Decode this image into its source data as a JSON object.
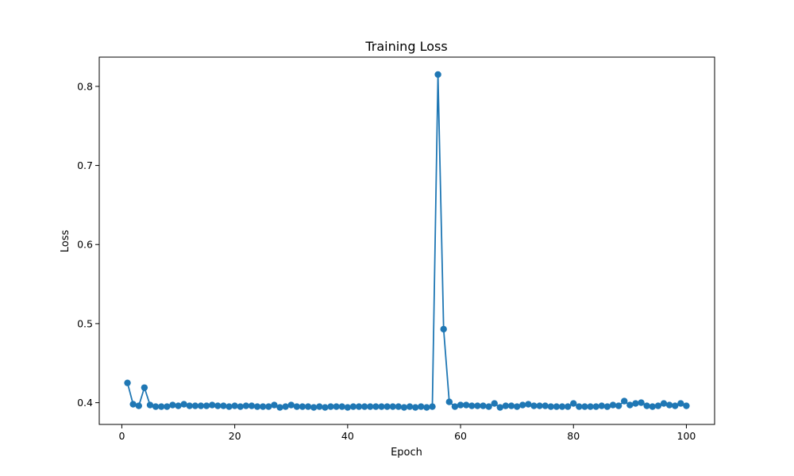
{
  "chart_data": {
    "type": "line",
    "title": "Training Loss",
    "xlabel": "Epoch",
    "ylabel": "Loss",
    "xlim": [
      -4,
      105
    ],
    "ylim": [
      0.3725,
      0.837
    ],
    "xticks": [
      0,
      20,
      40,
      60,
      80,
      100
    ],
    "yticks": [
      0.4,
      0.5,
      0.6,
      0.7,
      0.8
    ],
    "grid": false,
    "legend": "none",
    "color": "#1f77b4",
    "marker": "circle",
    "series": [
      {
        "x": [
          1,
          2,
          3,
          4,
          5,
          6,
          7,
          8,
          9,
          10,
          11,
          12,
          13,
          14,
          15,
          16,
          17,
          18,
          19,
          20,
          21,
          22,
          23,
          24,
          25,
          26,
          27,
          28,
          29,
          30,
          31,
          32,
          33,
          34,
          35,
          36,
          37,
          38,
          39,
          40,
          41,
          42,
          43,
          44,
          45,
          46,
          47,
          48,
          49,
          50,
          51,
          52,
          53,
          54,
          55,
          56,
          57,
          58,
          59,
          60,
          61,
          62,
          63,
          64,
          65,
          66,
          67,
          68,
          69,
          70,
          71,
          72,
          73,
          74,
          75,
          76,
          77,
          78,
          79,
          80,
          81,
          82,
          83,
          84,
          85,
          86,
          87,
          88,
          89,
          90,
          91,
          92,
          93,
          94,
          95,
          96,
          97,
          98,
          99,
          100
        ],
        "values": [
          0.425,
          0.398,
          0.396,
          0.419,
          0.397,
          0.395,
          0.395,
          0.395,
          0.397,
          0.396,
          0.398,
          0.396,
          0.396,
          0.396,
          0.396,
          0.397,
          0.396,
          0.396,
          0.395,
          0.396,
          0.395,
          0.396,
          0.396,
          0.395,
          0.395,
          0.395,
          0.397,
          0.394,
          0.395,
          0.397,
          0.395,
          0.395,
          0.395,
          0.394,
          0.395,
          0.394,
          0.395,
          0.395,
          0.395,
          0.394,
          0.395,
          0.395,
          0.395,
          0.395,
          0.395,
          0.395,
          0.395,
          0.395,
          0.395,
          0.394,
          0.395,
          0.394,
          0.395,
          0.394,
          0.395,
          0.815,
          0.493,
          0.401,
          0.395,
          0.397,
          0.397,
          0.396,
          0.396,
          0.396,
          0.395,
          0.399,
          0.394,
          0.396,
          0.396,
          0.395,
          0.397,
          0.398,
          0.396,
          0.396,
          0.396,
          0.395,
          0.395,
          0.395,
          0.395,
          0.399,
          0.395,
          0.395,
          0.395,
          0.395,
          0.396,
          0.395,
          0.397,
          0.396,
          0.402,
          0.397,
          0.399,
          0.4,
          0.396,
          0.395,
          0.396,
          0.399,
          0.397,
          0.396,
          0.399,
          0.396
        ]
      }
    ]
  }
}
